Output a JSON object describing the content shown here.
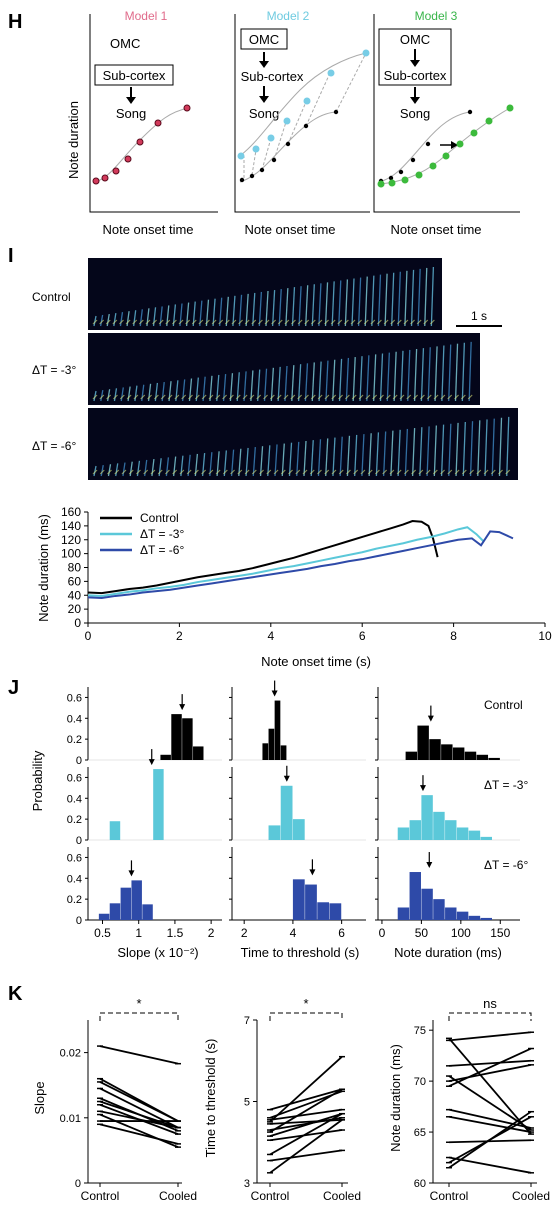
{
  "panel_letters": {
    "H": "H",
    "I": "I",
    "J": "J",
    "K": "K"
  },
  "colors": {
    "model1": "#e06b8b",
    "model2": "#6fcbe0",
    "model3": "#39b54a",
    "control": "#000000",
    "minus3": "#5bc8d9",
    "minus6": "#2e4aa8",
    "red_dot": "#d23a5b",
    "cyan_dot": "#78cde6",
    "green_dot": "#3cba3c",
    "grey": "#999999"
  },
  "panelH": {
    "models": [
      {
        "title": "Model 1",
        "omc": "OMC",
        "subcortex": "Sub-cortex",
        "song": "Song"
      },
      {
        "title": "Model 2",
        "omc": "OMC",
        "subcortex": "Sub-cortex",
        "song": "Song"
      },
      {
        "title": "Model 3",
        "omc": "OMC",
        "subcortex": "Sub-cortex",
        "song": "Song"
      }
    ],
    "ylabel": "Note duration",
    "xlabel": "Note onset time"
  },
  "panelI": {
    "spectrogram_labels": [
      "Control",
      "ΔT = -3°",
      "ΔT = -6°"
    ],
    "scale_bar": "1 s",
    "note_counts": [
      52,
      56,
      58
    ]
  },
  "chart_data": [
    {
      "id": "I-line",
      "type": "line",
      "xlabel": "Note onset time (s)",
      "ylabel": "Note duration (ms)",
      "xlim": [
        0,
        10
      ],
      "ylim": [
        0,
        160
      ],
      "xticks": [
        0,
        2,
        4,
        6,
        8,
        10
      ],
      "yticks": [
        0,
        20,
        40,
        60,
        80,
        100,
        120,
        140,
        160
      ],
      "legend": "top-left",
      "series": [
        {
          "name": "Control",
          "color": "#000000",
          "x": [
            0,
            0.3,
            0.6,
            0.9,
            1.2,
            1.5,
            1.8,
            2.1,
            2.4,
            2.7,
            3.0,
            3.3,
            3.6,
            3.9,
            4.2,
            4.5,
            4.8,
            5.1,
            5.4,
            5.7,
            6.0,
            6.3,
            6.6,
            6.9,
            7.1,
            7.3,
            7.45,
            7.55,
            7.65
          ],
          "y": [
            44,
            43,
            46,
            49,
            51,
            54,
            58,
            62,
            66,
            69,
            72,
            75,
            79,
            84,
            89,
            94,
            100,
            106,
            112,
            118,
            124,
            130,
            136,
            142,
            147,
            146,
            140,
            122,
            95
          ]
        },
        {
          "name": "ΔT = -3°",
          "color": "#5bc8d9",
          "x": [
            0,
            0.3,
            0.6,
            0.9,
            1.2,
            1.5,
            1.8,
            2.1,
            2.4,
            2.7,
            3.0,
            3.3,
            3.6,
            3.9,
            4.2,
            4.5,
            4.8,
            5.1,
            5.4,
            5.7,
            6.0,
            6.3,
            6.6,
            6.9,
            7.2,
            7.5,
            7.8,
            8.1,
            8.3,
            8.5,
            8.65
          ],
          "y": [
            40,
            39,
            42,
            45,
            47,
            50,
            52,
            55,
            59,
            62,
            65,
            68,
            71,
            75,
            79,
            82,
            86,
            90,
            94,
            98,
            102,
            107,
            111,
            115,
            120,
            124,
            129,
            135,
            138,
            128,
            118
          ]
        },
        {
          "name": "ΔT = -6°",
          "color": "#2e4aa8",
          "x": [
            0,
            0.3,
            0.6,
            0.9,
            1.2,
            1.5,
            1.8,
            2.1,
            2.4,
            2.7,
            3.0,
            3.3,
            3.6,
            3.9,
            4.2,
            4.5,
            4.8,
            5.1,
            5.4,
            5.7,
            6.0,
            6.3,
            6.6,
            6.9,
            7.2,
            7.5,
            7.8,
            8.1,
            8.4,
            8.6,
            8.8,
            9.0,
            9.3
          ],
          "y": [
            37,
            36,
            39,
            41,
            44,
            46,
            48,
            51,
            54,
            57,
            60,
            63,
            66,
            69,
            72,
            75,
            78,
            82,
            85,
            89,
            92,
            96,
            100,
            104,
            108,
            112,
            116,
            120,
            122,
            112,
            132,
            131,
            122
          ]
        }
      ]
    },
    {
      "id": "J-slope-control",
      "type": "bar",
      "bin_edges": [
        1.3,
        1.45,
        1.6,
        1.75,
        1.9
      ],
      "values": [
        0.05,
        0.44,
        0.4,
        0.13
      ],
      "arrow": 1.6,
      "xlim": [
        0.3,
        2.15
      ],
      "ylim": [
        0,
        0.7
      ],
      "color": "#000000"
    },
    {
      "id": "J-time-control",
      "type": "bar",
      "bin_edges": [
        2.75,
        3.0,
        3.25,
        3.5,
        3.75
      ],
      "values": [
        0.16,
        0.3,
        0.57,
        0.14
      ],
      "arrow": 3.25,
      "xlim": [
        1.5,
        7.0
      ],
      "ylim": [
        0,
        0.7
      ],
      "color": "#000000"
    },
    {
      "id": "J-dur-control",
      "type": "bar",
      "bin_edges": [
        30,
        45,
        60,
        75,
        90,
        105,
        120,
        135,
        150
      ],
      "values": [
        0.08,
        0.33,
        0.2,
        0.15,
        0.12,
        0.08,
        0.05,
        0.02
      ],
      "arrow": 62,
      "xlim": [
        -5,
        175
      ],
      "ylim": [
        0,
        0.7
      ],
      "color": "#000000"
    },
    {
      "id": "J-slope-m3",
      "type": "bar",
      "bin_edges": [
        0.6,
        0.75,
        0.9,
        1.05,
        1.2,
        1.35
      ],
      "values": [
        0.18,
        0,
        0,
        0,
        0.68,
        0.19
      ],
      "arrow": 1.18,
      "xlim": [
        0.3,
        2.15
      ],
      "ylim": [
        0,
        0.7
      ],
      "color": "#5bc8d9"
    },
    {
      "id": "J-time-m3",
      "type": "bar",
      "bin_edges": [
        3.0,
        3.5,
        4.0,
        4.5
      ],
      "values": [
        0.14,
        0.52,
        0.2
      ],
      "arrow": 3.75,
      "xlim": [
        1.5,
        7.0
      ],
      "ylim": [
        0,
        0.7
      ],
      "color": "#5bc8d9"
    },
    {
      "id": "J-dur-m3",
      "type": "bar",
      "bin_edges": [
        20,
        35,
        50,
        65,
        80,
        95,
        110,
        125,
        140
      ],
      "values": [
        0.12,
        0.19,
        0.43,
        0.27,
        0.19,
        0.12,
        0.09,
        0.03
      ],
      "arrow": 52,
      "xlim": [
        -5,
        175
      ],
      "ylim": [
        0,
        0.7
      ],
      "color": "#5bc8d9"
    },
    {
      "id": "J-slope-m6",
      "type": "bar",
      "bin_edges": [
        0.45,
        0.6,
        0.75,
        0.9,
        1.05,
        1.2
      ],
      "values": [
        0.06,
        0.16,
        0.31,
        0.38,
        0.15
      ],
      "arrow": 0.9,
      "xlim": [
        0.3,
        2.15
      ],
      "ylim": [
        0,
        0.7
      ],
      "color": "#2e4aa8"
    },
    {
      "id": "J-time-m6",
      "type": "bar",
      "bin_edges": [
        4.0,
        4.5,
        5.0,
        5.5,
        6.0
      ],
      "values": [
        0.39,
        0.34,
        0.17,
        0.16
      ],
      "arrow": 4.8,
      "xlim": [
        1.5,
        7.0
      ],
      "ylim": [
        0,
        0.7
      ],
      "color": "#2e4aa8"
    },
    {
      "id": "J-dur-m6",
      "type": "bar",
      "bin_edges": [
        20,
        35,
        50,
        65,
        80,
        95,
        110,
        125,
        140
      ],
      "values": [
        0.12,
        0.46,
        0.3,
        0.2,
        0.12,
        0.08,
        0.04,
        0.02
      ],
      "arrow": 60,
      "xlim": [
        -5,
        175
      ],
      "ylim": [
        0,
        0.7
      ],
      "color": "#2e4aa8"
    },
    {
      "id": "K-slope",
      "type": "line",
      "categories": [
        "Control",
        "Cooled"
      ],
      "ylabel": "Slope",
      "ylim": [
        0,
        0.025
      ],
      "yticks": [
        0,
        0.01,
        0.02
      ],
      "yticklabels": [
        "0",
        "0.01",
        "0.02"
      ],
      "sig": "*",
      "pairs": [
        [
          0.021,
          0.0183
        ],
        [
          0.016,
          0.0095
        ],
        [
          0.0155,
          0.0095
        ],
        [
          0.0145,
          0.0085
        ],
        [
          0.013,
          0.008
        ],
        [
          0.0125,
          0.0085
        ],
        [
          0.012,
          0.0075
        ],
        [
          0.011,
          0.0085
        ],
        [
          0.0105,
          0.0055
        ],
        [
          0.0095,
          0.0095
        ],
        [
          0.009,
          0.006
        ]
      ]
    },
    {
      "id": "K-time",
      "type": "line",
      "categories": [
        "Control",
        "Cooled"
      ],
      "ylabel": "Time to threshold (s)",
      "ylim": [
        3,
        7
      ],
      "yticks": [
        3,
        5,
        7
      ],
      "yticklabels": [
        "3",
        "5",
        "7"
      ],
      "sig": "*",
      "pairs": [
        [
          4.8,
          5.3
        ],
        [
          4.6,
          5.25
        ],
        [
          4.55,
          4.8
        ],
        [
          4.5,
          6.1
        ],
        [
          4.45,
          4.55
        ],
        [
          4.3,
          4.6
        ],
        [
          4.25,
          5.3
        ],
        [
          4.15,
          4.7
        ],
        [
          4.05,
          4.3
        ],
        [
          3.7,
          4.7
        ],
        [
          3.55,
          3.8
        ],
        [
          3.25,
          4.55
        ]
      ]
    },
    {
      "id": "K-dur",
      "type": "line",
      "categories": [
        "Control",
        "Cooled"
      ],
      "ylabel": "Note duration (ms)",
      "ylim": [
        60,
        76
      ],
      "yticks": [
        60,
        65,
        70,
        75
      ],
      "yticklabels": [
        "60",
        "65",
        "70",
        "75"
      ],
      "sig": "ns",
      "pairs": [
        [
          74.2,
          64.8
        ],
        [
          74.0,
          74.8
        ],
        [
          71.5,
          72.0
        ],
        [
          70.5,
          65.2
        ],
        [
          70.0,
          71.6
        ],
        [
          69.5,
          73.2
        ],
        [
          67.2,
          65.4
        ],
        [
          66.5,
          65.0
        ],
        [
          64.0,
          64.2
        ],
        [
          62.5,
          61.0
        ],
        [
          62.0,
          66.5
        ],
        [
          61.5,
          67.0
        ]
      ]
    }
  ],
  "panelJ": {
    "condition_labels": [
      "Control",
      "ΔT = -3°",
      "ΔT = -6°"
    ],
    "ylabel": "Probability",
    "yticklabels": [
      "0",
      "0.2",
      "0.4",
      "0.6"
    ],
    "xlabels": [
      "Slope (x 10⁻²)",
      "Time to threshold (s)",
      "Note duration (ms)"
    ],
    "xticks": [
      [
        0.5,
        1,
        1.5,
        2
      ],
      [
        2,
        4,
        6
      ],
      [
        0,
        50,
        100,
        150
      ]
    ],
    "xticklabels": [
      [
        "0.5",
        "1",
        "1.5",
        "2"
      ],
      [
        "2",
        "4",
        "6"
      ],
      [
        "0",
        "50",
        "100",
        "150"
      ]
    ]
  }
}
